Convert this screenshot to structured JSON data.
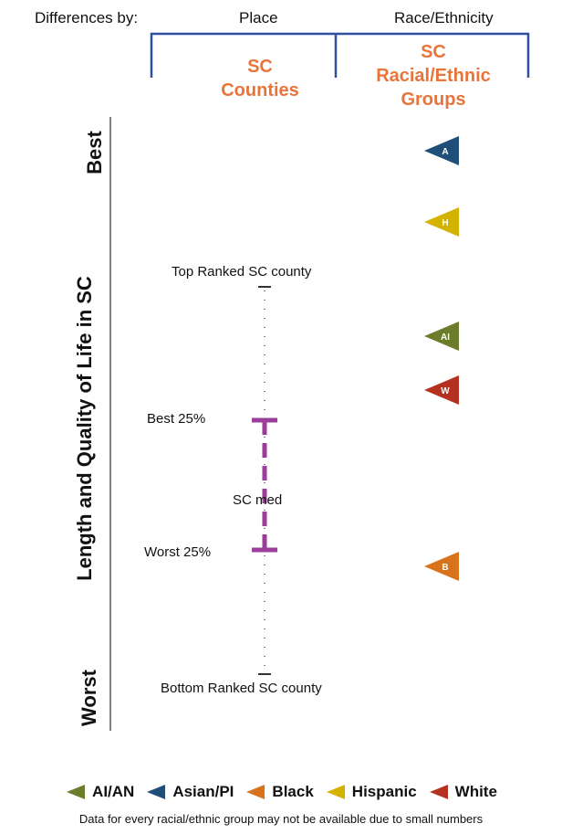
{
  "header": {
    "differences_by": "Differences by:",
    "place": "Place",
    "race_ethnicity": "Race/Ethnicity",
    "place_sub_line1": "SC",
    "place_sub_line2": "Counties",
    "race_sub_line1": "SC",
    "race_sub_line2": "Racial/Ethnic",
    "race_sub_line3": "Groups"
  },
  "axis": {
    "label": "Length and Quality of Life in SC",
    "best": "Best",
    "worst": "Worst"
  },
  "county_bar": {
    "top_label": "Top Ranked SC county",
    "best25_label": "Best 25%",
    "median_label": "SC med",
    "worst25_label": "Worst 25%",
    "bottom_label": "Bottom Ranked SC county"
  },
  "markers": [
    {
      "letter": "A",
      "group": "Asian/PI",
      "color": "#1f4e79"
    },
    {
      "letter": "H",
      "group": "Hispanic",
      "color": "#d4b200"
    },
    {
      "letter": "AI",
      "group": "AI/AN",
      "color": "#6b7d2a"
    },
    {
      "letter": "W",
      "group": "White",
      "color": "#b5301f"
    },
    {
      "letter": "B",
      "group": "Black",
      "color": "#d6731c"
    }
  ],
  "legend": [
    {
      "label": "AI/AN",
      "color": "#6b7d2a"
    },
    {
      "label": "Asian/PI",
      "color": "#1f4e79"
    },
    {
      "label": "Black",
      "color": "#d6731c"
    },
    {
      "label": "Hispanic",
      "color": "#d4b200"
    },
    {
      "label": "White",
      "color": "#b5301f"
    }
  ],
  "footnote": "Data for every racial/ethnic group may not be available due to small numbers",
  "colors": {
    "bracket": "#2f4fa0",
    "iqr_bar": "#9b3d9a",
    "accent_text": "#e8743a"
  }
}
